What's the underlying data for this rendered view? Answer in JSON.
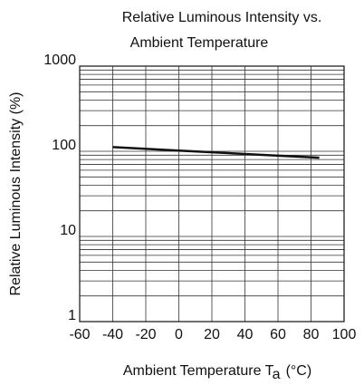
{
  "chart_data": {
    "type": "line",
    "title": [
      "Relative Luminous Intensity vs.",
      "Ambient Temperature"
    ],
    "y_label": "Relative Luminous Intensity  (%)",
    "x_label": {
      "text": "Ambient Temperature T",
      "subscript": "a",
      "unit": "(°C)"
    },
    "xlim": [
      -60,
      100
    ],
    "xticks": [
      -60,
      -40,
      -20,
      0,
      20,
      40,
      60,
      80,
      100
    ],
    "ylim": [
      1,
      1000
    ],
    "yticks": [
      1,
      10,
      100,
      1000
    ],
    "log_y": true,
    "grid": true,
    "minor_grid": true,
    "series": [
      {
        "name": "Relative Luminous Intensity",
        "color": "#111111",
        "x": [
          -40,
          0,
          40,
          85
        ],
        "values": [
          112,
          102,
          93,
          84
        ]
      }
    ]
  }
}
